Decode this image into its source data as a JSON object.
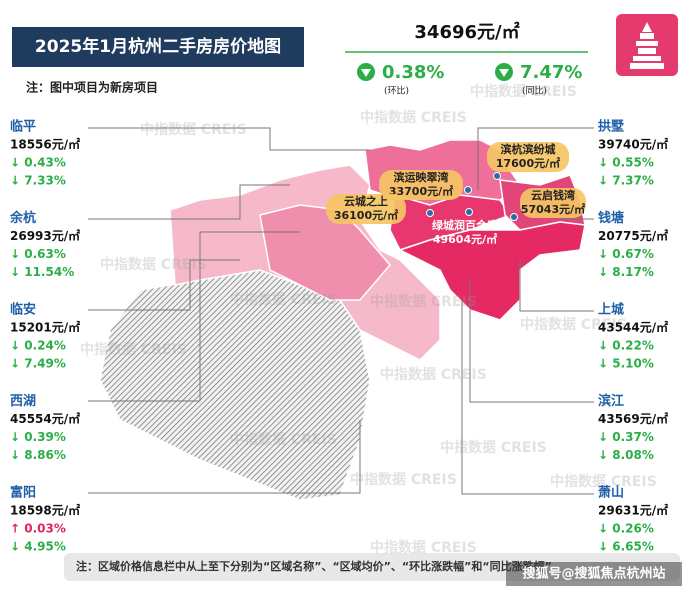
{
  "title": "2025年1月杭州二手房房价地图",
  "note": "注：图中项目为新房项目",
  "city_price": "34696元/㎡",
  "city_changes": [
    {
      "value": "0.38%",
      "label": "(环比)"
    },
    {
      "value": "7.47%",
      "label": "(同比)"
    }
  ],
  "left_districts": [
    {
      "name": "临平",
      "price": "18556元/㎡",
      "mom": "↓ 0.43%",
      "yoy": "↓ 7.33%"
    },
    {
      "name": "余杭",
      "price": "26993元/㎡",
      "mom": "↓ 0.63%",
      "yoy": "↓ 11.54%"
    },
    {
      "name": "临安",
      "price": "15201元/㎡",
      "mom": "↓ 0.24%",
      "yoy": "↓ 7.49%"
    },
    {
      "name": "西湖",
      "price": "45554元/㎡",
      "mom": "↓ 0.39%",
      "yoy": "↓ 8.86%"
    },
    {
      "name": "富阳",
      "price": "18598元/㎡",
      "mom": "↑ 0.03%",
      "yoy": "↓ 4.95%"
    }
  ],
  "right_districts": [
    {
      "name": "拱墅",
      "price": "39740元/㎡",
      "mom": "↓ 0.55%",
      "yoy": "↓ 7.37%"
    },
    {
      "name": "钱塘",
      "price": "20775元/㎡",
      "mom": "↓ 0.67%",
      "yoy": "↓ 8.17%"
    },
    {
      "name": "上城",
      "price": "43544元/㎡",
      "mom": "↓ 0.22%",
      "yoy": "↓ 5.10%"
    },
    {
      "name": "滨江",
      "price": "43569元/㎡",
      "mom": "↓ 0.37%",
      "yoy": "↓ 8.08%"
    },
    {
      "name": "萧山",
      "price": "29631元/㎡",
      "mom": "↓ 0.26%",
      "yoy": "↓ 6.65%"
    }
  ],
  "projects": [
    {
      "name": "滨杭滨纷城",
      "price": "17600元/㎡"
    },
    {
      "name": "滨运映翠湾",
      "price": "33700元/㎡"
    },
    {
      "name": "云城之上",
      "price": "36100元/㎡"
    },
    {
      "name": "云启钱湾",
      "price": "57043元/㎡"
    },
    {
      "name": "绿城润百合庭",
      "price": "49604元/㎡"
    }
  ],
  "watermark": "中指数据 CREIS",
  "footer": "注：区域价格信息栏中从上至下分别为“区域名称”、“区域均价”、“环比涨跌幅”和“同比涨跌幅”",
  "source_watermark": "搜狐号@搜狐焦点杭州站"
}
